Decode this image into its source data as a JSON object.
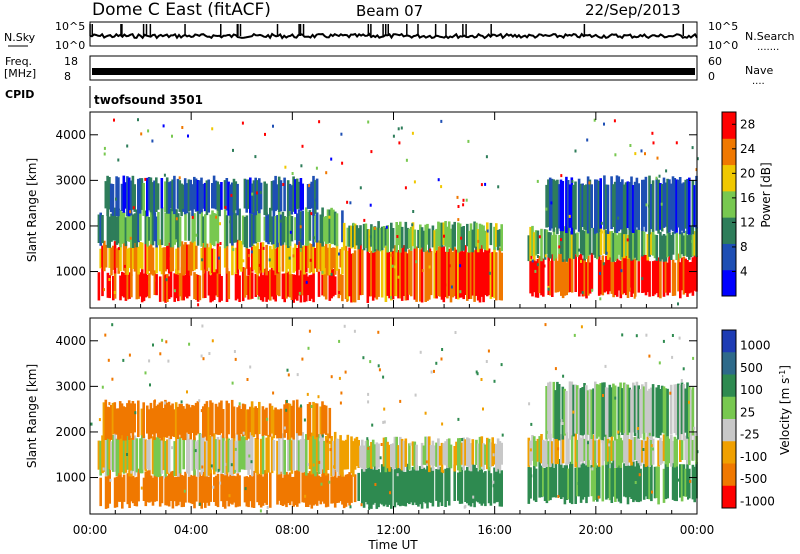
{
  "header": {
    "site": "Dome C East (fitACF)",
    "beam": "Beam 07",
    "date": "22/Sep/2013"
  },
  "panels": {
    "nsky_label": "N.Sky",
    "nsearch_label": "N.Search",
    "freq_label_line1": "Freq.",
    "freq_label_line2": "[MHz]",
    "nave_label": "Nave",
    "cpid_label": "CPID",
    "cpid_value": "twofsound 3501",
    "sky_ticks": [
      "10^5",
      "10^0"
    ],
    "freq_ticks": [
      "18",
      "8"
    ],
    "nave_ticks": [
      "60",
      "0"
    ],
    "nsearch_ticks": [
      "10^5",
      "10^0"
    ]
  },
  "chart_data": [
    {
      "type": "heatmap",
      "name": "power",
      "ylabel": "Slant Range [km]",
      "xlabel": "",
      "xlim": [
        "00:00",
        "00:00"
      ],
      "ylim": [
        200,
        4500
      ],
      "yticks": [
        1000,
        2000,
        3000,
        4000
      ],
      "colorbar": {
        "label": "Power [dB]",
        "ticks": [
          4,
          8,
          12,
          16,
          20,
          24,
          28
        ],
        "range": [
          0,
          30
        ],
        "colors": [
          "#0000ff",
          "#1e4fb4",
          "#2e7d5a",
          "#78c850",
          "#f0c800",
          "#f07800",
          "#ff0000"
        ]
      },
      "bands": [
        {
          "t0": 0.3,
          "t1": 10.0,
          "r0": 400,
          "r1": 1000,
          "value": 28
        },
        {
          "t0": 0.3,
          "t1": 10.0,
          "r0": 1000,
          "r1": 1600,
          "value": 22
        },
        {
          "t0": 0.3,
          "t1": 10.0,
          "r0": 1600,
          "r1": 2300,
          "value": 12
        },
        {
          "t0": 0.5,
          "t1": 9.0,
          "r0": 2300,
          "r1": 3000,
          "value": 8
        },
        {
          "t0": 10.0,
          "t1": 16.3,
          "r0": 400,
          "r1": 1500,
          "value": 26
        },
        {
          "t0": 10.0,
          "t1": 16.3,
          "r0": 1500,
          "r1": 2000,
          "value": 14
        },
        {
          "t0": 17.3,
          "t1": 24.0,
          "r0": 500,
          "r1": 1300,
          "value": 28
        },
        {
          "t0": 17.3,
          "t1": 24.0,
          "r0": 1300,
          "r1": 1900,
          "value": 14
        },
        {
          "t0": 18.0,
          "t1": 24.0,
          "r0": 1900,
          "r1": 3000,
          "value": 8
        }
      ]
    },
    {
      "type": "heatmap",
      "name": "velocity",
      "ylabel": "Slant Range [km]",
      "xlabel": "Time UT",
      "xlim": [
        "00:00",
        "00:00"
      ],
      "ylim": [
        200,
        4500
      ],
      "yticks": [
        1000,
        2000,
        3000,
        4000
      ],
      "xticks": [
        "00:00",
        "04:00",
        "08:00",
        "12:00",
        "16:00",
        "20:00",
        "00:00"
      ],
      "colorbar": {
        "label": "Velocity [m s^-1]",
        "ticks": [
          "1000",
          "500",
          "100",
          "25",
          "-25",
          "-100",
          "-500",
          "-1000"
        ],
        "colors": [
          "#1e3cb4",
          "#2e6a8a",
          "#2e8a50",
          "#78c850",
          "#c8c8c8",
          "#f0a000",
          "#f07800",
          "#ff0000"
        ]
      },
      "bands": [
        {
          "t0": 0.3,
          "t1": 10.5,
          "r0": 400,
          "r1": 1100,
          "value": -200
        },
        {
          "t0": 0.3,
          "t1": 10.5,
          "r0": 1100,
          "r1": 1900,
          "value": 0
        },
        {
          "t0": 0.5,
          "t1": 9.5,
          "r0": 1900,
          "r1": 2600,
          "value": -100
        },
        {
          "t0": 10.5,
          "t1": 16.3,
          "r0": 400,
          "r1": 1200,
          "value": 150
        },
        {
          "t0": 10.5,
          "t1": 16.3,
          "r0": 1200,
          "r1": 1800,
          "value": 0
        },
        {
          "t0": 17.3,
          "t1": 24.0,
          "r0": 500,
          "r1": 1300,
          "value": 100
        },
        {
          "t0": 17.3,
          "t1": 24.0,
          "r0": 1300,
          "r1": 1900,
          "value": 0
        },
        {
          "t0": 18.0,
          "t1": 24.0,
          "r0": 1900,
          "r1": 3000,
          "value": 50
        }
      ]
    }
  ]
}
